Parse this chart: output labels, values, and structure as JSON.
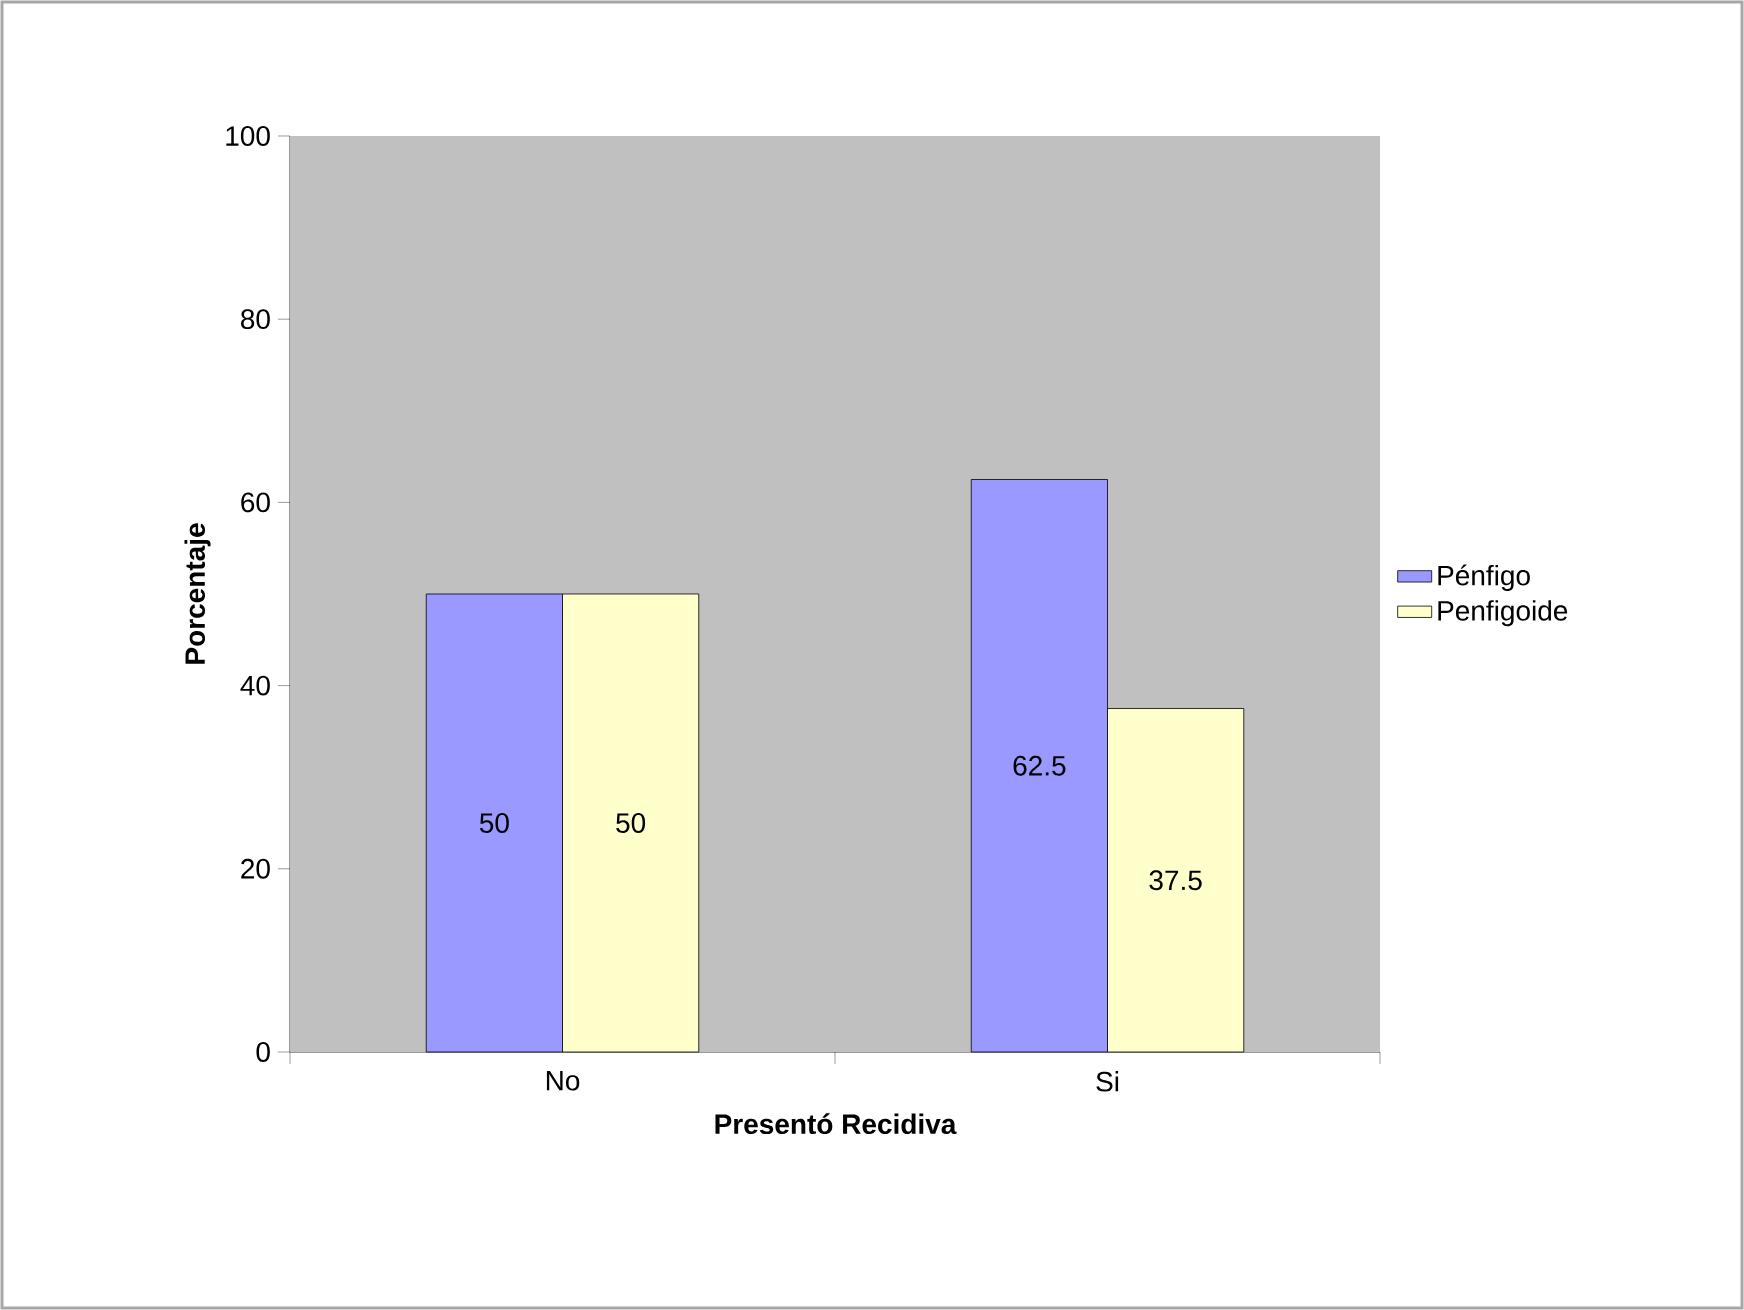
{
  "chart_data": {
    "type": "bar",
    "xlabel": "Presentó Recidiva",
    "ylabel": "Porcentaje",
    "categories": [
      "No",
      "Si"
    ],
    "series": [
      {
        "name": "Pénfigo",
        "color": "#9999ff",
        "values": [
          50,
          62.5
        ]
      },
      {
        "name": "Penfigoide",
        "color": "#ffffcc",
        "values": [
          50,
          37.5
        ]
      }
    ],
    "ylim": [
      0,
      100
    ],
    "yticks": [
      0,
      20,
      40,
      60,
      80,
      100
    ],
    "data_labels": true,
    "legend": "right",
    "grid": false
  }
}
